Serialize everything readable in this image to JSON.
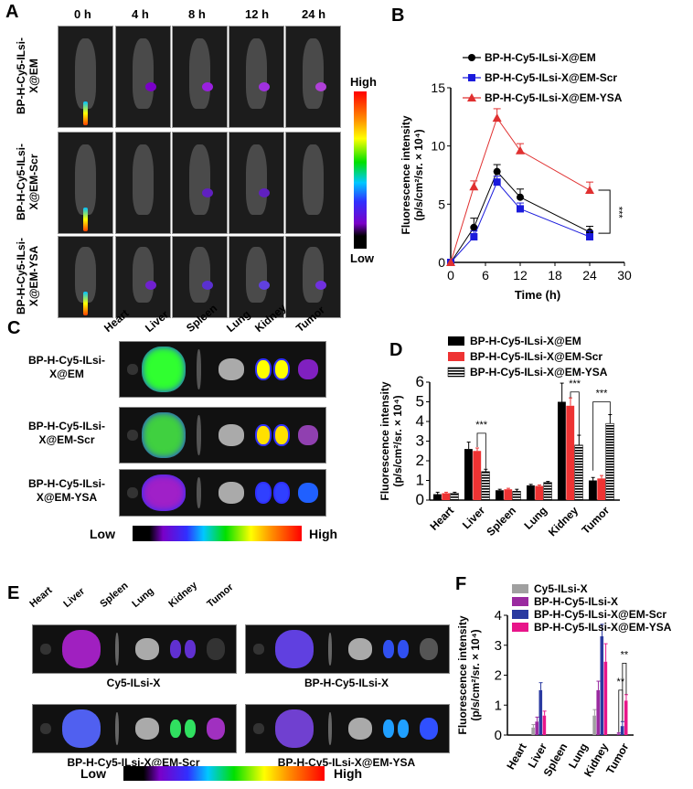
{
  "panels": {
    "A": "A",
    "B": "B",
    "C": "C",
    "D": "D",
    "E": "E",
    "F": "F"
  },
  "panelA": {
    "times": [
      "0 h",
      "4 h",
      "8 h",
      "12 h",
      "24 h"
    ],
    "rows": [
      "BP-H-Cy5-ILsi-X@EM",
      "BP-H-Cy5-ILsi-X@EM-Scr",
      "BP-H-Cy5-ILsi-X@EM-YSA"
    ],
    "scale_high": "High",
    "scale_low": "Low"
  },
  "panelC": {
    "organs": [
      "Heart",
      "Liver",
      "Spleen",
      "Lung",
      "Kidney",
      "Tumor"
    ],
    "rows": [
      "BP-H-Cy5-ILsi-X@EM",
      "BP-H-Cy5-ILsi-X@EM-Scr",
      "BP-H-Cy5-ILsi-X@EM-YSA"
    ],
    "scale_low": "Low",
    "scale_high": "High"
  },
  "panelE": {
    "organs": [
      "Heart",
      "Liver",
      "Spleen",
      "Lung",
      "Kidney",
      "Tumor"
    ],
    "captions": [
      "Cy5-ILsi-X",
      "BP-H-Cy5-ILsi-X",
      "BP-H-Cy5-ILsi-X@EM-Scr",
      "BP-H-Cy5-ILsi-X@EM-YSA"
    ],
    "scale_low": "Low",
    "scale_high": "High"
  },
  "chart_data": [
    {
      "id": "B",
      "type": "line",
      "xlabel": "Time (h)",
      "ylabel": "Fluorescence intensity (p/s/cm²/sr. × 10⁴)",
      "xlim": [
        0,
        30
      ],
      "ylim": [
        0,
        15
      ],
      "xticks": [
        0,
        6,
        12,
        18,
        24,
        30
      ],
      "yticks": [
        0,
        5,
        10,
        15
      ],
      "legend": "top",
      "x": [
        0,
        4,
        8,
        12,
        24
      ],
      "series": [
        {
          "name": "BP-H-Cy5-ILsi-X@EM",
          "color": "#000000",
          "marker": "circle",
          "values": [
            0,
            3.0,
            7.8,
            5.6,
            2.6
          ],
          "errors": [
            0,
            0.8,
            0.6,
            0.7,
            0.5
          ]
        },
        {
          "name": "BP-H-Cy5-ILsi-X@EM-Scr",
          "color": "#1a1adc",
          "marker": "square",
          "values": [
            0,
            2.2,
            6.9,
            4.6,
            2.2
          ],
          "errors": [
            0,
            0.5,
            0.5,
            0.5,
            0.5
          ]
        },
        {
          "name": "BP-H-Cy5-ILsi-X@EM-YSA",
          "color": "#e03030",
          "marker": "triangle",
          "values": [
            0,
            6.5,
            12.4,
            9.6,
            6.2
          ],
          "errors": [
            0,
            0.5,
            0.8,
            0.6,
            0.7
          ]
        }
      ],
      "annotations": [
        "***"
      ]
    },
    {
      "id": "D",
      "type": "bar",
      "ylabel": "Fluorescence intensity (p/s/cm²/sr. × 10⁴)",
      "ylim": [
        0,
        6
      ],
      "yticks": [
        0,
        1,
        2,
        3,
        4,
        5,
        6
      ],
      "legend": "top",
      "categories": [
        "Heart",
        "Liver",
        "Spleen",
        "Lung",
        "Kidney",
        "Tumor"
      ],
      "series": [
        {
          "name": "BP-H-Cy5-ILsi-X@EM",
          "color": "#000000",
          "values": [
            0.3,
            2.6,
            0.5,
            0.75,
            5.0,
            1.0
          ],
          "errors": [
            0.1,
            0.35,
            0.05,
            0.05,
            0.95,
            0.15
          ]
        },
        {
          "name": "BP-H-Cy5-ILsi-X@EM-Scr",
          "color": "#ee3333",
          "values": [
            0.35,
            2.5,
            0.55,
            0.72,
            4.8,
            1.1
          ],
          "errors": [
            0.05,
            0.15,
            0.05,
            0.05,
            0.4,
            0.15
          ]
        },
        {
          "name": "BP-H-Cy5-ILsi-X@EM-YSA",
          "color": "#striped",
          "values": [
            0.35,
            1.45,
            0.45,
            0.9,
            2.8,
            3.9
          ],
          "errors": [
            0.05,
            0.12,
            0.1,
            0.05,
            0.5,
            0.45
          ]
        }
      ],
      "annotations": [
        "***",
        "***",
        "***"
      ]
    },
    {
      "id": "F",
      "type": "bar",
      "ylabel": "Fluorescence intensity (p/s/cm²/sr. × 10⁴)",
      "ylim": [
        0,
        4
      ],
      "yticks": [
        0,
        1,
        2,
        3,
        4
      ],
      "legend": "top",
      "categories": [
        "Heart",
        "Liver",
        "Spleen",
        "Lung",
        "Kidney",
        "Tumor"
      ],
      "series": [
        {
          "name": "Cy5-ILsi-X",
          "color": "#a0a0a0",
          "values": [
            0,
            0.25,
            0,
            0,
            0.65,
            0
          ],
          "errors": [
            0,
            0.1,
            0,
            0,
            0.2,
            0
          ]
        },
        {
          "name": "BP-H-Cy5-ILsi-X",
          "color": "#9a2aa0",
          "values": [
            0,
            0.45,
            0,
            0,
            1.5,
            0.05
          ],
          "errors": [
            0,
            0.15,
            0,
            0,
            0.3,
            0.03
          ]
        },
        {
          "name": "BP-H-Cy5-ILsi-X@EM-Scr",
          "color": "#2a3aa0",
          "values": [
            0,
            1.5,
            0,
            0,
            3.3,
            0.3
          ],
          "errors": [
            0,
            0.25,
            0,
            0,
            0.4,
            0.15
          ]
        },
        {
          "name": "BP-H-Cy5-ILsi-X@EM-YSA",
          "color": "#e8158a",
          "values": [
            0,
            0.65,
            0,
            0,
            2.45,
            1.15
          ],
          "errors": [
            0,
            0.15,
            0,
            0,
            0.6,
            0.2
          ]
        }
      ],
      "annotations": [
        "**",
        "**"
      ]
    }
  ]
}
